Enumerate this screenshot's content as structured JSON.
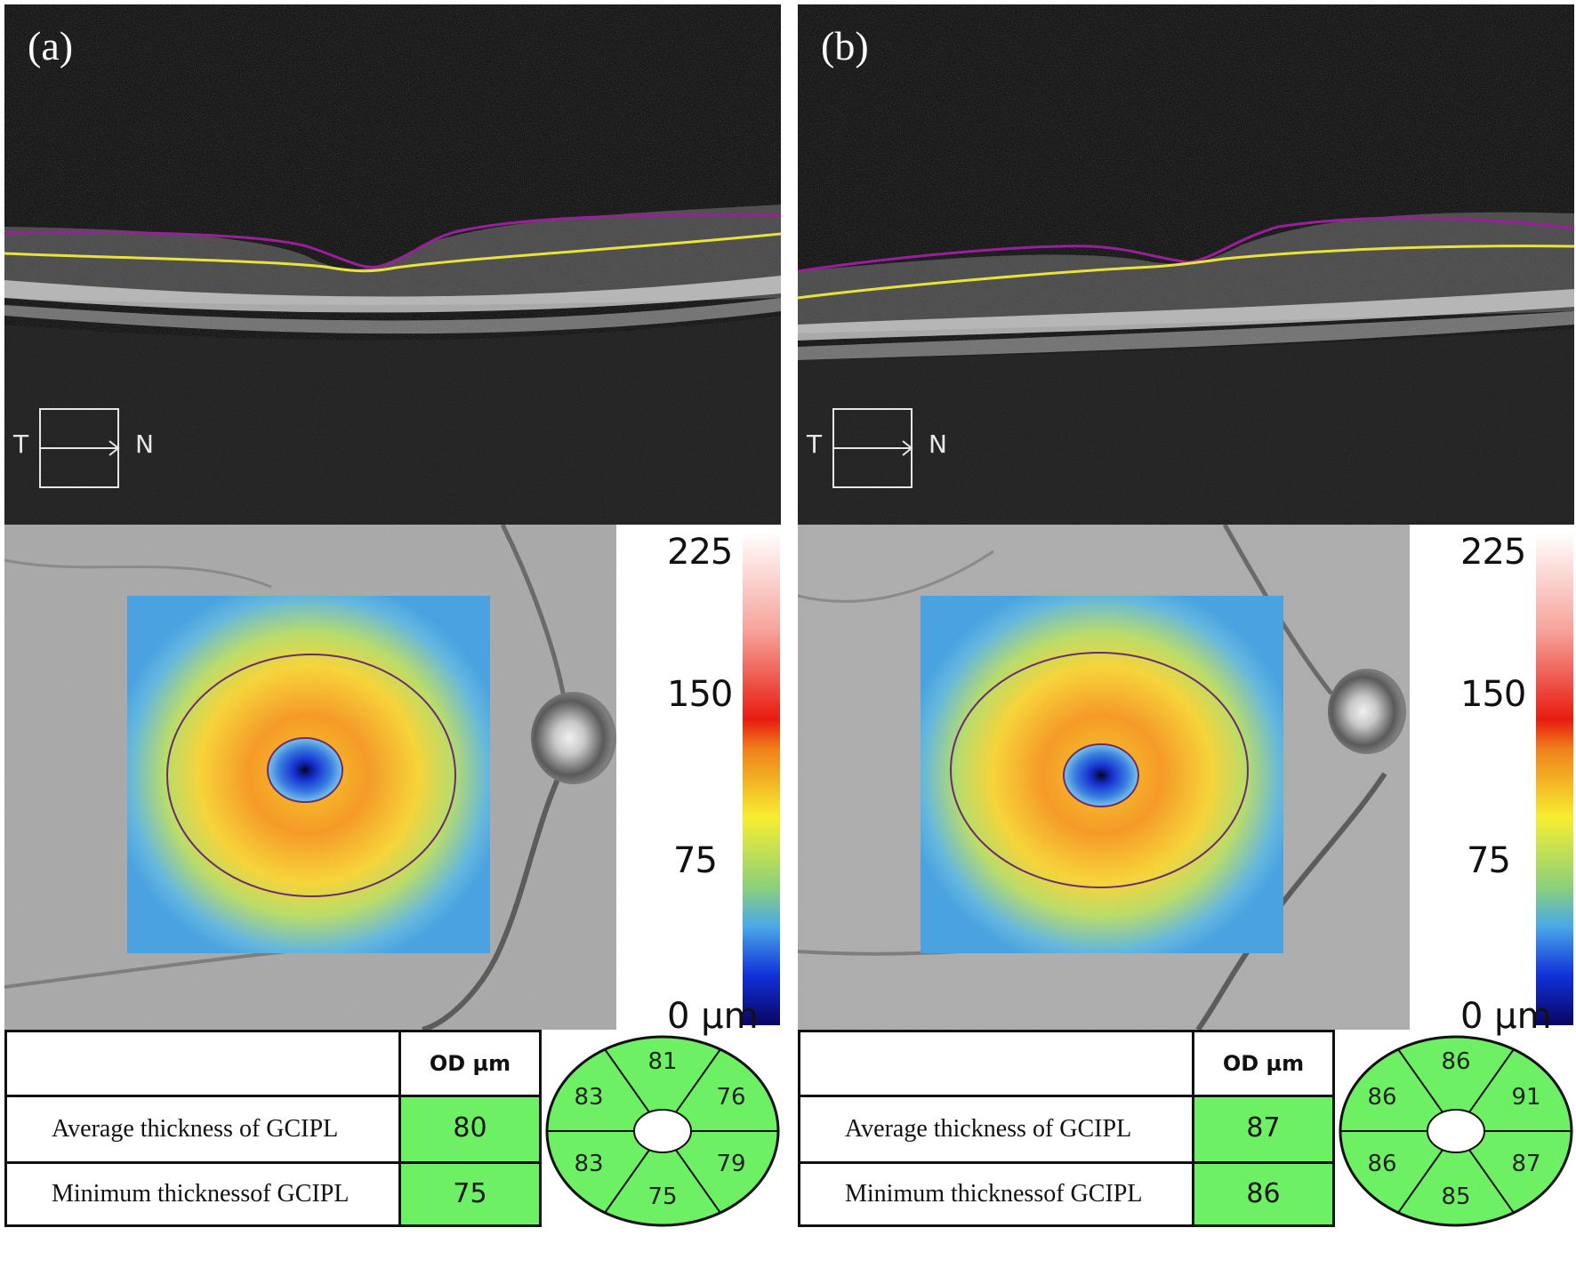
{
  "panels": [
    {
      "label": "(a)",
      "orientation": {
        "temporal": "T",
        "nasal": "N"
      },
      "colorbar": {
        "ticks": [
          "225",
          "150",
          "75",
          "0"
        ],
        "unit": "µm"
      },
      "table": {
        "header": "OD µm",
        "rows": [
          {
            "label": "Average thickness of GCIPL",
            "value": "80"
          },
          {
            "label": "Minimum thicknessof GCIPL",
            "value": "75"
          }
        ]
      },
      "sectors": {
        "superior": "81",
        "superotemporal": "83",
        "superonasal": "76",
        "inferotemporal": "83",
        "inferonasal": "79",
        "inferior": "75"
      }
    },
    {
      "label": "(b)",
      "orientation": {
        "temporal": "T",
        "nasal": "N"
      },
      "colorbar": {
        "ticks": [
          "225",
          "150",
          "75",
          "0"
        ],
        "unit": "µm"
      },
      "table": {
        "header": "OD µm",
        "rows": [
          {
            "label": "Average thickness of GCIPL",
            "value": "87"
          },
          {
            "label": "Minimum thicknessof GCIPL",
            "value": "86"
          }
        ]
      },
      "sectors": {
        "superior": "86",
        "superotemporal": "86",
        "superonasal": "91",
        "inferotemporal": "86",
        "inferonasal": "87",
        "inferior": "85"
      }
    }
  ],
  "colors": {
    "normal_green": "#6ef065",
    "purple_line": "#9b1f9b",
    "yellow_line": "#e8e23a"
  }
}
